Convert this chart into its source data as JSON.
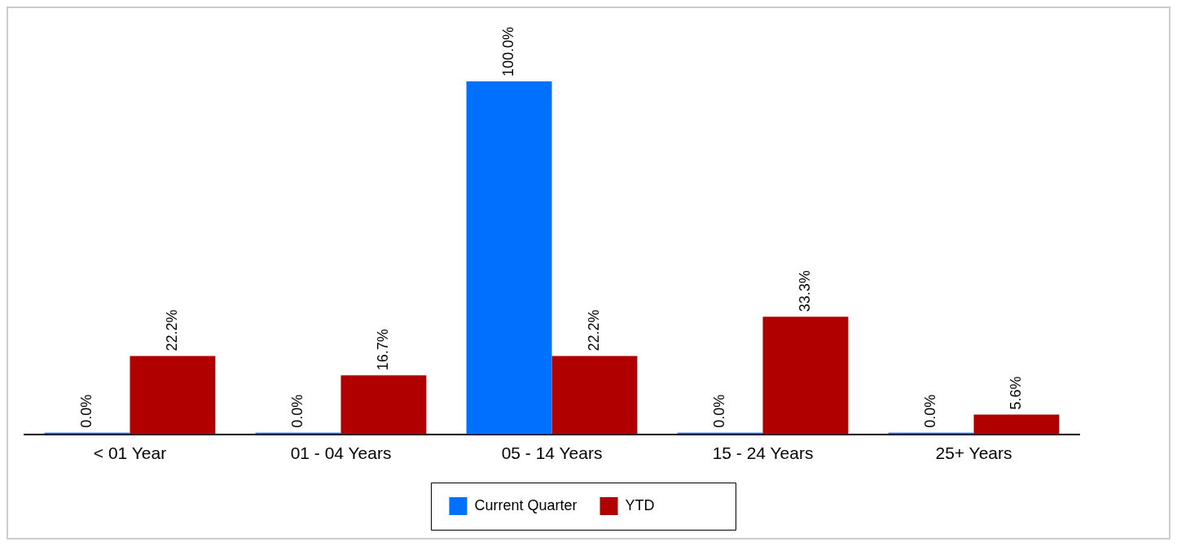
{
  "chart_data": {
    "type": "bar",
    "categories": [
      "< 01 Year",
      "01 - 04 Years",
      "05 - 14 Years",
      "15 - 24 Years",
      "25+ Years"
    ],
    "series": [
      {
        "name": "Current Quarter",
        "color": "#0070ff",
        "values": [
          0.0,
          0.0,
          100.0,
          0.0,
          0.0
        ],
        "value_labels": [
          "0.0%",
          "0.0%",
          "100.0%",
          "0.0%",
          "0.0%"
        ]
      },
      {
        "name": "YTD",
        "color": "#b00000",
        "values": [
          22.2,
          16.7,
          22.2,
          33.3,
          5.6
        ],
        "value_labels": [
          "22.2%",
          "16.7%",
          "22.2%",
          "33.3%",
          "5.6%"
        ]
      }
    ],
    "legend": "bottom",
    "grid": false,
    "tick_labels": "x"
  }
}
